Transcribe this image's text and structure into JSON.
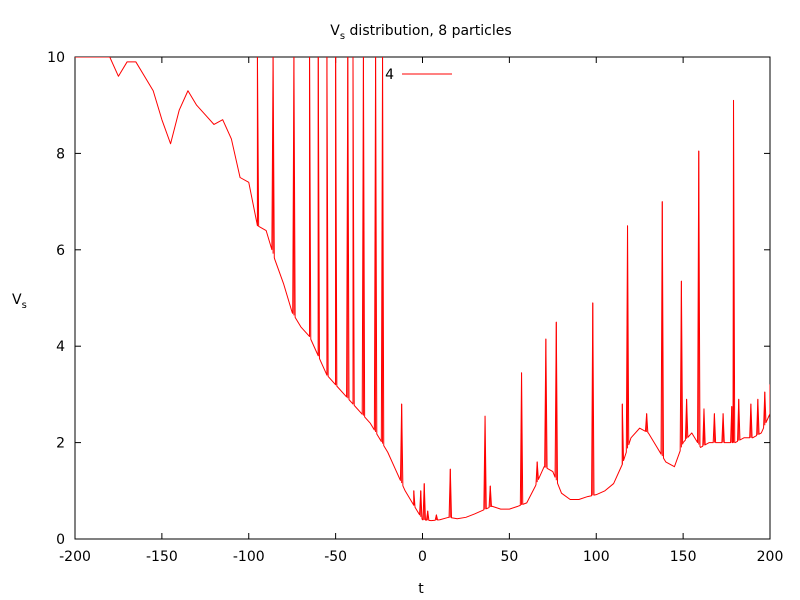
{
  "chart_data": {
    "type": "line",
    "title": {
      "main": "V",
      "sub": "s",
      "rest": " distribution, 8 particles"
    },
    "xlabel": "t",
    "ylabel": {
      "main": "V",
      "sub": "s"
    },
    "xlim": [
      -200,
      200
    ],
    "ylim": [
      0,
      10
    ],
    "x_ticks": [
      -200,
      -150,
      -100,
      -50,
      0,
      50,
      100,
      150,
      200
    ],
    "y_ticks": [
      0,
      2,
      4,
      6,
      8,
      10
    ],
    "x_tick_labels": [
      "-200",
      "-150",
      "-100",
      "-50",
      "0",
      "50",
      "100",
      "150",
      "200"
    ],
    "y_tick_labels": [
      "0",
      "2",
      "4",
      "6",
      "8",
      "10"
    ],
    "legend_position": "top-center",
    "grid": false,
    "series": [
      {
        "name": "4",
        "color": "#ff0000",
        "baseline": [
          [
            -200,
            10.0
          ],
          [
            -180,
            10.0
          ],
          [
            -175,
            9.6
          ],
          [
            -170,
            9.9
          ],
          [
            -165,
            9.9
          ],
          [
            -160,
            9.6
          ],
          [
            -155,
            9.3
          ],
          [
            -150,
            8.7
          ],
          [
            -145,
            8.2
          ],
          [
            -140,
            8.9
          ],
          [
            -135,
            9.3
          ],
          [
            -130,
            9.0
          ],
          [
            -125,
            8.8
          ],
          [
            -120,
            8.6
          ],
          [
            -115,
            8.7
          ],
          [
            -110,
            8.3
          ],
          [
            -105,
            7.5
          ],
          [
            -100,
            7.4
          ],
          [
            -95,
            6.5
          ],
          [
            -90,
            6.4
          ],
          [
            -85,
            5.8
          ],
          [
            -80,
            5.3
          ],
          [
            -75,
            4.7
          ],
          [
            -70,
            4.4
          ],
          [
            -65,
            4.2
          ],
          [
            -60,
            3.8
          ],
          [
            -55,
            3.4
          ],
          [
            -50,
            3.2
          ],
          [
            -45,
            3.0
          ],
          [
            -40,
            2.8
          ],
          [
            -35,
            2.6
          ],
          [
            -30,
            2.4
          ],
          [
            -25,
            2.1
          ],
          [
            -20,
            1.8
          ],
          [
            -15,
            1.4
          ],
          [
            -10,
            1.0
          ],
          [
            -5,
            0.7
          ],
          [
            0,
            0.4
          ],
          [
            5,
            0.38
          ],
          [
            10,
            0.4
          ],
          [
            15,
            0.45
          ],
          [
            20,
            0.42
          ],
          [
            25,
            0.45
          ],
          [
            30,
            0.52
          ],
          [
            35,
            0.6
          ],
          [
            40,
            0.68
          ],
          [
            45,
            0.62
          ],
          [
            50,
            0.62
          ],
          [
            55,
            0.68
          ],
          [
            60,
            0.75
          ],
          [
            65,
            1.1
          ],
          [
            70,
            1.5
          ],
          [
            75,
            1.4
          ],
          [
            80,
            0.95
          ],
          [
            85,
            0.82
          ],
          [
            90,
            0.82
          ],
          [
            95,
            0.88
          ],
          [
            100,
            0.92
          ],
          [
            105,
            1.0
          ],
          [
            110,
            1.15
          ],
          [
            115,
            1.55
          ],
          [
            120,
            2.1
          ],
          [
            125,
            2.3
          ],
          [
            130,
            2.2
          ],
          [
            135,
            1.9
          ],
          [
            140,
            1.6
          ],
          [
            145,
            1.5
          ],
          [
            150,
            2.0
          ],
          [
            155,
            2.2
          ],
          [
            160,
            1.9
          ],
          [
            165,
            2.0
          ],
          [
            170,
            2.0
          ],
          [
            175,
            2.0
          ],
          [
            180,
            2.0
          ],
          [
            185,
            2.1
          ],
          [
            190,
            2.1
          ],
          [
            195,
            2.2
          ],
          [
            200,
            2.6
          ]
        ],
        "spikes": [
          [
            -95,
            10.0
          ],
          [
            -86,
            10.0
          ],
          [
            -74,
            10.0
          ],
          [
            -65,
            10.0
          ],
          [
            -60,
            10.0
          ],
          [
            -55,
            10.0
          ],
          [
            -50,
            10.0
          ],
          [
            -43,
            10.0
          ],
          [
            -40,
            10.0
          ],
          [
            -34,
            10.0
          ],
          [
            -27,
            10.0
          ],
          [
            -23,
            10.0
          ],
          [
            -12,
            2.8
          ],
          [
            -5,
            1.0
          ],
          [
            -1,
            1.0
          ],
          [
            1,
            1.15
          ],
          [
            3,
            0.58
          ],
          [
            8,
            0.5
          ],
          [
            16,
            1.45
          ],
          [
            36,
            2.55
          ],
          [
            39,
            1.1
          ],
          [
            57,
            3.45
          ],
          [
            66,
            1.6
          ],
          [
            71,
            4.15
          ],
          [
            77,
            4.5
          ],
          [
            98,
            4.9
          ],
          [
            115,
            2.8
          ],
          [
            118,
            6.5
          ],
          [
            129,
            2.6
          ],
          [
            138,
            7.0
          ],
          [
            149,
            5.35
          ],
          [
            152,
            2.9
          ],
          [
            159,
            8.05
          ],
          [
            162,
            2.7
          ],
          [
            168,
            2.6
          ],
          [
            173,
            2.6
          ],
          [
            178,
            2.75
          ],
          [
            179,
            9.1
          ],
          [
            182,
            2.9
          ],
          [
            189,
            2.8
          ],
          [
            193,
            2.9
          ],
          [
            197,
            3.05
          ],
          [
            200,
            3.2
          ]
        ]
      }
    ]
  }
}
